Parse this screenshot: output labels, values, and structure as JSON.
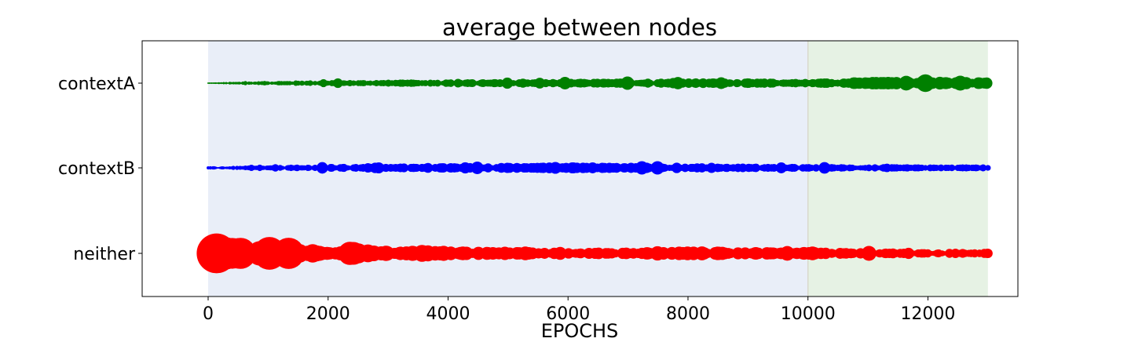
{
  "chart_data": {
    "type": "scatter",
    "title": "average between nodes",
    "xlabel": "EPOCHS",
    "ylabel": "",
    "xlim": [
      -1100,
      13500
    ],
    "xticks": [
      0,
      2000,
      4000,
      6000,
      8000,
      10000,
      12000
    ],
    "xtick_labels": [
      "0",
      "2000",
      "4000",
      "6000",
      "8000",
      "10000",
      "12000"
    ],
    "categories": [
      "contextA",
      "contextB",
      "neither"
    ],
    "grid": false,
    "legend": "none",
    "bubble_size_meaning": "relative marker size",
    "shaded_regions": [
      {
        "x0": 0,
        "x1": 10000,
        "color": "#e9eef8"
      },
      {
        "x0": 10000,
        "x1": 13000,
        "color": "#e6f2e4"
      }
    ],
    "series": [
      {
        "category": "contextA",
        "color": "#008000",
        "x_range": [
          0,
          13000
        ],
        "size_profile": [
          [
            0,
            0.1
          ],
          [
            500,
            0.2
          ],
          [
            1000,
            0.3
          ],
          [
            1500,
            0.35
          ],
          [
            2000,
            0.4
          ],
          [
            3000,
            0.45
          ],
          [
            4000,
            0.5
          ],
          [
            5000,
            0.52
          ],
          [
            6000,
            0.55
          ],
          [
            7000,
            0.6
          ],
          [
            8000,
            0.62
          ],
          [
            9000,
            0.6
          ],
          [
            10000,
            0.55
          ],
          [
            11000,
            0.8
          ],
          [
            12000,
            0.8
          ],
          [
            13000,
            0.8
          ]
        ]
      },
      {
        "category": "contextB",
        "color": "#0000ff",
        "x_range": [
          0,
          13000
        ],
        "size_profile": [
          [
            0,
            0.2
          ],
          [
            1000,
            0.35
          ],
          [
            2000,
            0.5
          ],
          [
            3000,
            0.55
          ],
          [
            4000,
            0.6
          ],
          [
            5000,
            0.65
          ],
          [
            6000,
            0.7
          ],
          [
            7000,
            0.68
          ],
          [
            8000,
            0.6
          ],
          [
            9000,
            0.55
          ],
          [
            10000,
            0.5
          ],
          [
            11000,
            0.48
          ],
          [
            12000,
            0.45
          ],
          [
            13000,
            0.45
          ]
        ]
      },
      {
        "category": "neither",
        "color": "#ff0000",
        "x_range": [
          0,
          13000
        ],
        "size_profile": [
          [
            0,
            2.2
          ],
          [
            500,
            2.0
          ],
          [
            1000,
            1.4
          ],
          [
            1500,
            1.3
          ],
          [
            2000,
            1.0
          ],
          [
            3000,
            1.0
          ],
          [
            4000,
            0.9
          ],
          [
            5000,
            0.85
          ],
          [
            6000,
            0.7
          ],
          [
            7000,
            0.75
          ],
          [
            8000,
            0.9
          ],
          [
            9000,
            0.8
          ],
          [
            10000,
            0.8
          ],
          [
            11000,
            0.65
          ],
          [
            12000,
            0.6
          ],
          [
            13000,
            0.6
          ]
        ]
      }
    ]
  }
}
